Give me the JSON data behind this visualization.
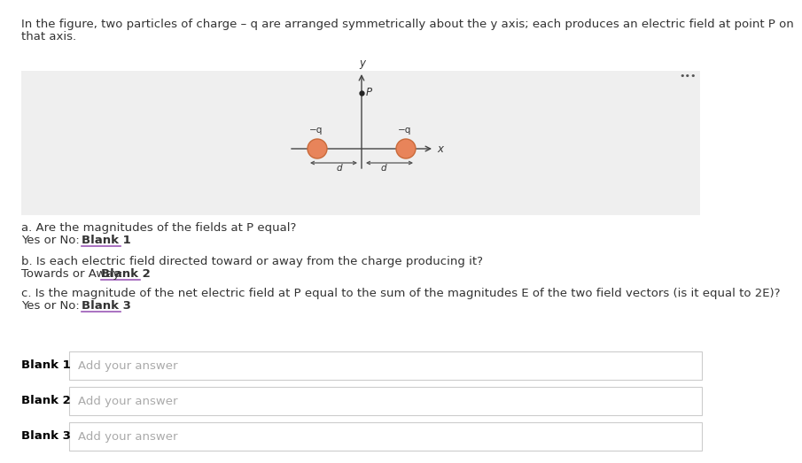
{
  "bg_color": "#ffffff",
  "panel_bg": "#efefef",
  "header_line1": "In the figure, two particles of charge – q are arranged symmetrically about the y axis; each produces an electric field at point P on",
  "header_line2": "that axis.",
  "header_fontsize": 9.5,
  "question_a_line1": "a. Are the magnitudes of the fields at P equal?",
  "question_a_line2_plain": "Yes or No: ",
  "question_a_line2_bold": "Blank 1",
  "question_b_line1": "b. Is each electric field directed toward or away from the charge producing it?",
  "question_b_line2_plain": "Towards or Away: ",
  "question_b_line2_bold": "Blank 2",
  "question_c_line1": "c. Is the magnitude of the net electric field at P equal to the sum of the magnitudes E of the two field vectors (is it equal to 2E)?",
  "question_c_line2_plain": "Yes or No: ",
  "question_c_line2_bold": "Blank 3",
  "blank_labels": [
    "Blank 1",
    "Blank 2",
    "Blank 3"
  ],
  "blank_placeholder": "Add your answer",
  "charge_color": "#e8845a",
  "charge_edge_color": "#c96a3a",
  "text_color": "#333333",
  "blank_underline_color": "#9b59b6",
  "answer_box_border": "#cccccc",
  "dots_color": "#555555",
  "q_label": "−q",
  "p_label": "P",
  "y_label": "y",
  "x_label": "x",
  "d_label": "d"
}
